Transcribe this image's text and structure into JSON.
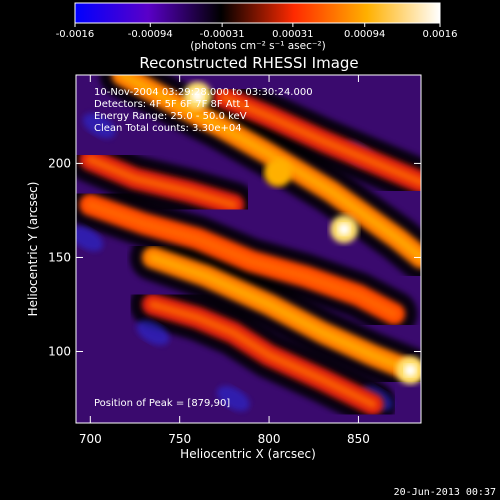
{
  "chart_data": {
    "type": "heatmap",
    "title": "Reconstructed RHESSI Image",
    "xlabel": "Heliocentric X (arcsec)",
    "ylabel": "Heliocentric Y (arcsec)",
    "xlim": [
      692,
      885
    ],
    "ylim": [
      62,
      247
    ],
    "xticks": [
      700,
      750,
      800,
      850
    ],
    "yticks": [
      100,
      150,
      200
    ],
    "colorbar": {
      "range": [
        -0.0016,
        0.0016
      ],
      "ticks": [
        "-0.0016",
        "-0.00094",
        "-0.00031",
        "0.00031",
        "0.00094",
        "0.0016"
      ],
      "label": "(photons cm⁻² s⁻¹ asec⁻²)",
      "colormap": [
        "#0000ff",
        "#5a00c8",
        "#000000",
        "#ff2a00",
        "#ffb000",
        "#ffffff"
      ]
    },
    "annotations": [
      "10-Nov-2004 03:29:28.000 to 03:30:24.000",
      "Detectors: 4F 5F 6F 7F 8F  Att 1",
      "Energy Range: 25.0 - 50.0 keV",
      "Clean     Total counts: 3.30e+04"
    ],
    "peak_label": "Position of Peak = [879,90]",
    "peak": {
      "x": 879,
      "y": 90
    },
    "bright_ridges": [
      {
        "x": [
          718,
          745,
          772,
          800,
          835,
          872,
          885
        ],
        "y": [
          247,
          233,
          220,
          205,
          185,
          160,
          150
        ],
        "level": 0.8
      },
      {
        "x": [
          700,
          730,
          760,
          790,
          820,
          850,
          870
        ],
        "y": [
          178,
          168,
          160,
          148,
          140,
          130,
          120
        ],
        "level": 0.7
      },
      {
        "x": [
          735,
          765,
          800,
          830,
          858,
          879
        ],
        "y": [
          150,
          140,
          125,
          110,
          98,
          90
        ],
        "level": 0.9
      },
      {
        "x": [
          735,
          760,
          780,
          800,
          830,
          858
        ],
        "y": [
          125,
          118,
          110,
          98,
          85,
          72
        ],
        "level": 0.6
      },
      {
        "x": [
          700,
          725,
          755,
          780
        ],
        "y": [
          202,
          192,
          185,
          178
        ],
        "level": 0.5
      },
      {
        "x": [
          775,
          800,
          830,
          855,
          885
        ],
        "y": [
          235,
          225,
          212,
          202,
          190
        ],
        "level": 0.55
      }
    ],
    "bright_spots": [
      {
        "x": 842,
        "y": 165,
        "level": 1.0
      },
      {
        "x": 879,
        "y": 90,
        "level": 1.0
      },
      {
        "x": 760,
        "y": 236,
        "level": 0.95
      },
      {
        "x": 805,
        "y": 195,
        "level": 0.75
      }
    ]
  },
  "timestamp": "20-Jun-2013 00:37"
}
